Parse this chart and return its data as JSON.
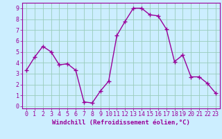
{
  "x": [
    0,
    1,
    2,
    3,
    4,
    5,
    6,
    7,
    8,
    9,
    10,
    11,
    12,
    13,
    14,
    15,
    16,
    17,
    18,
    19,
    20,
    21,
    22,
    23
  ],
  "y": [
    3.3,
    4.5,
    5.5,
    5.0,
    3.8,
    3.9,
    3.3,
    0.4,
    0.3,
    1.4,
    2.3,
    6.5,
    7.8,
    9.0,
    9.0,
    8.4,
    8.3,
    7.1,
    4.1,
    4.7,
    2.7,
    2.7,
    2.1,
    1.2
  ],
  "line_color": "#990099",
  "marker": "+",
  "marker_size": 4,
  "line_width": 1.0,
  "bg_color": "#cceeff",
  "grid_color": "#99ccbb",
  "xlabel": "Windchill (Refroidissement éolien,°C)",
  "xlabel_color": "#990099",
  "xlabel_fontsize": 6.5,
  "xlim": [
    -0.5,
    23.5
  ],
  "ylim": [
    -0.2,
    9.5
  ],
  "xtick_labels": [
    "0",
    "1",
    "2",
    "3",
    "4",
    "5",
    "6",
    "7",
    "8",
    "9",
    "10",
    "11",
    "12",
    "13",
    "14",
    "15",
    "16",
    "17",
    "18",
    "19",
    "20",
    "21",
    "22",
    "23"
  ],
  "ytick_labels": [
    "0",
    "1",
    "2",
    "3",
    "4",
    "5",
    "6",
    "7",
    "8",
    "9"
  ],
  "tick_fontsize": 6.0,
  "tick_color": "#990099"
}
